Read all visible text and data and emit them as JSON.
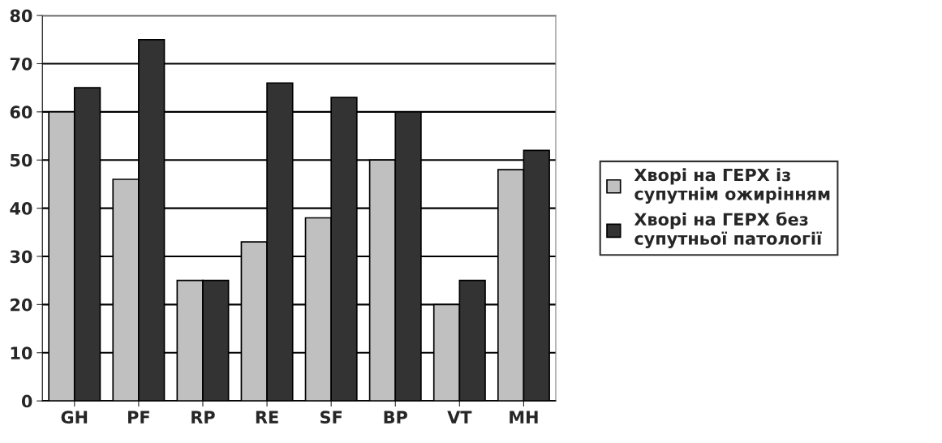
{
  "chart_data": {
    "type": "bar",
    "categories": [
      "GH",
      "PF",
      "RP",
      "RE",
      "SF",
      "BP",
      "VT",
      "MH"
    ],
    "series": [
      {
        "name": "Хворі на ГЕРХ із супутнім ожирінням",
        "color": "#c0c0c0",
        "values": [
          60,
          46,
          25,
          33,
          38,
          50,
          20,
          48
        ]
      },
      {
        "name": "Хворі на ГЕРХ без супутньої патології",
        "color": "#333333",
        "values": [
          65,
          75,
          25,
          66,
          63,
          60,
          25,
          52
        ]
      }
    ],
    "ylim": [
      0,
      80
    ],
    "yticks": [
      0,
      10,
      20,
      30,
      40,
      50,
      60,
      70,
      80
    ],
    "grid": "y",
    "legend": "right"
  }
}
